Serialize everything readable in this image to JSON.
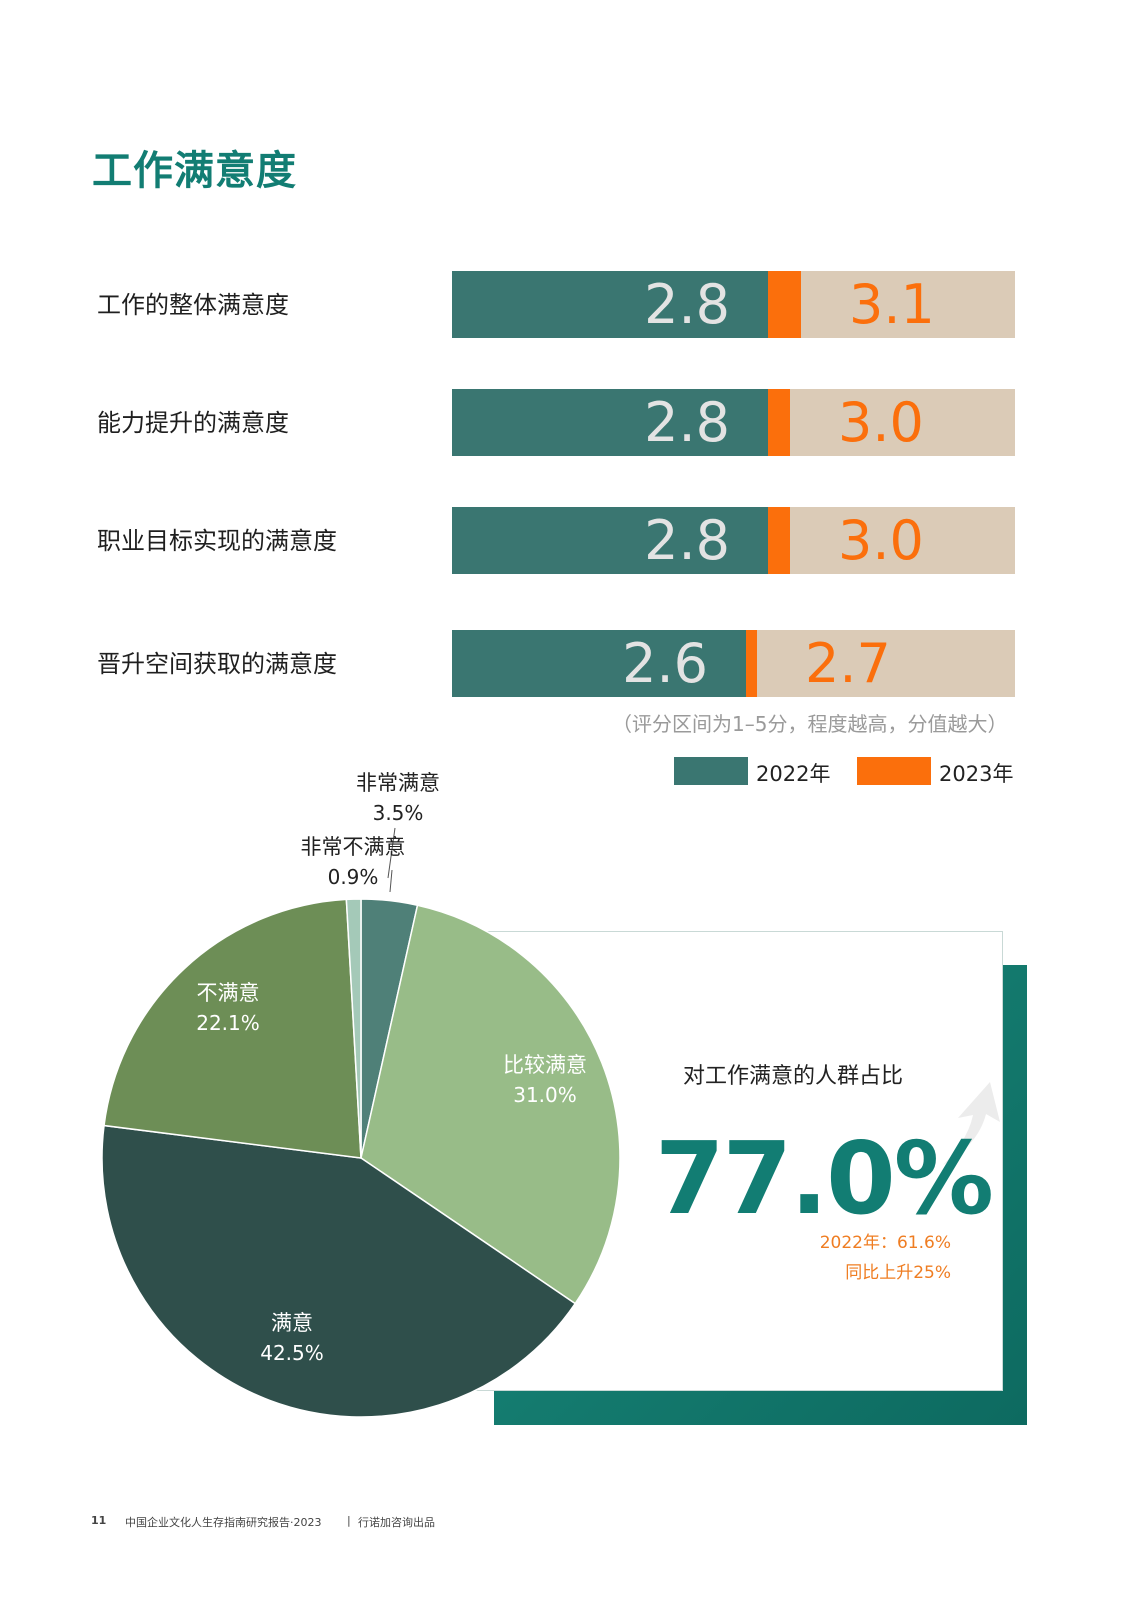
{
  "title": "工作满意度",
  "bar_chart": {
    "rows": [
      {
        "label": "工作的整体满意度",
        "v2022": 2.8,
        "v2023": 3.1,
        "t2022": "2.8",
        "t2023": "3.1"
      },
      {
        "label": "能力提升的满意度",
        "v2022": 2.8,
        "v2023": 3.0,
        "t2022": "2.8",
        "t2023": "3.0"
      },
      {
        "label": "职业目标实现的满意度",
        "v2022": 2.8,
        "v2023": 3.0,
        "t2022": "2.8",
        "t2023": "3.0"
      },
      {
        "label": "晋升空间获取的满意度",
        "v2022": 2.6,
        "v2023": 2.7,
        "t2022": "2.6",
        "t2023": "2.7"
      }
    ],
    "note": "（评分区间为1–5分，程度越高，分值越大）",
    "legend": [
      {
        "label": "2022年",
        "color": "#3a7671"
      },
      {
        "label": "2023年",
        "color": "#fb6f0c"
      }
    ]
  },
  "chart_data": [
    {
      "type": "bar",
      "categories": [
        "工作的整体满意度",
        "能力提升的满意度",
        "职业目标实现的满意度",
        "晋升空间获取的满意度"
      ],
      "series": [
        {
          "name": "2022年",
          "values": [
            2.8,
            2.8,
            2.8,
            2.6
          ]
        },
        {
          "name": "2023年",
          "values": [
            3.1,
            3.0,
            3.0,
            2.7
          ]
        }
      ],
      "ylim": [
        1,
        5
      ]
    },
    {
      "type": "pie",
      "slices": [
        {
          "label": "非常满意",
          "value": 3.5,
          "pct": "3.5%",
          "color": "#4f8078"
        },
        {
          "label": "比较满意",
          "value": 31.0,
          "pct": "31.0%",
          "color": "#98bc88"
        },
        {
          "label": "满意",
          "value": 42.5,
          "pct": "42.5%",
          "color": "#2f4f4b"
        },
        {
          "label": "不满意",
          "value": 22.1,
          "pct": "22.1%",
          "color": "#6d8e56"
        },
        {
          "label": "非常不满意",
          "value": 0.9,
          "pct": "0.9%",
          "color": "#a4c9b8"
        }
      ]
    }
  ],
  "callout": {
    "label": "对工作满意的人群占比",
    "value": "77.0%",
    "prev": "2022年：61.6%",
    "change": "同比上升25%"
  },
  "footer": {
    "page": "11",
    "report": "中国企业文化人生存指南研究报告·2023",
    "sep": "|",
    "publisher": "行诺加咨询出品"
  }
}
